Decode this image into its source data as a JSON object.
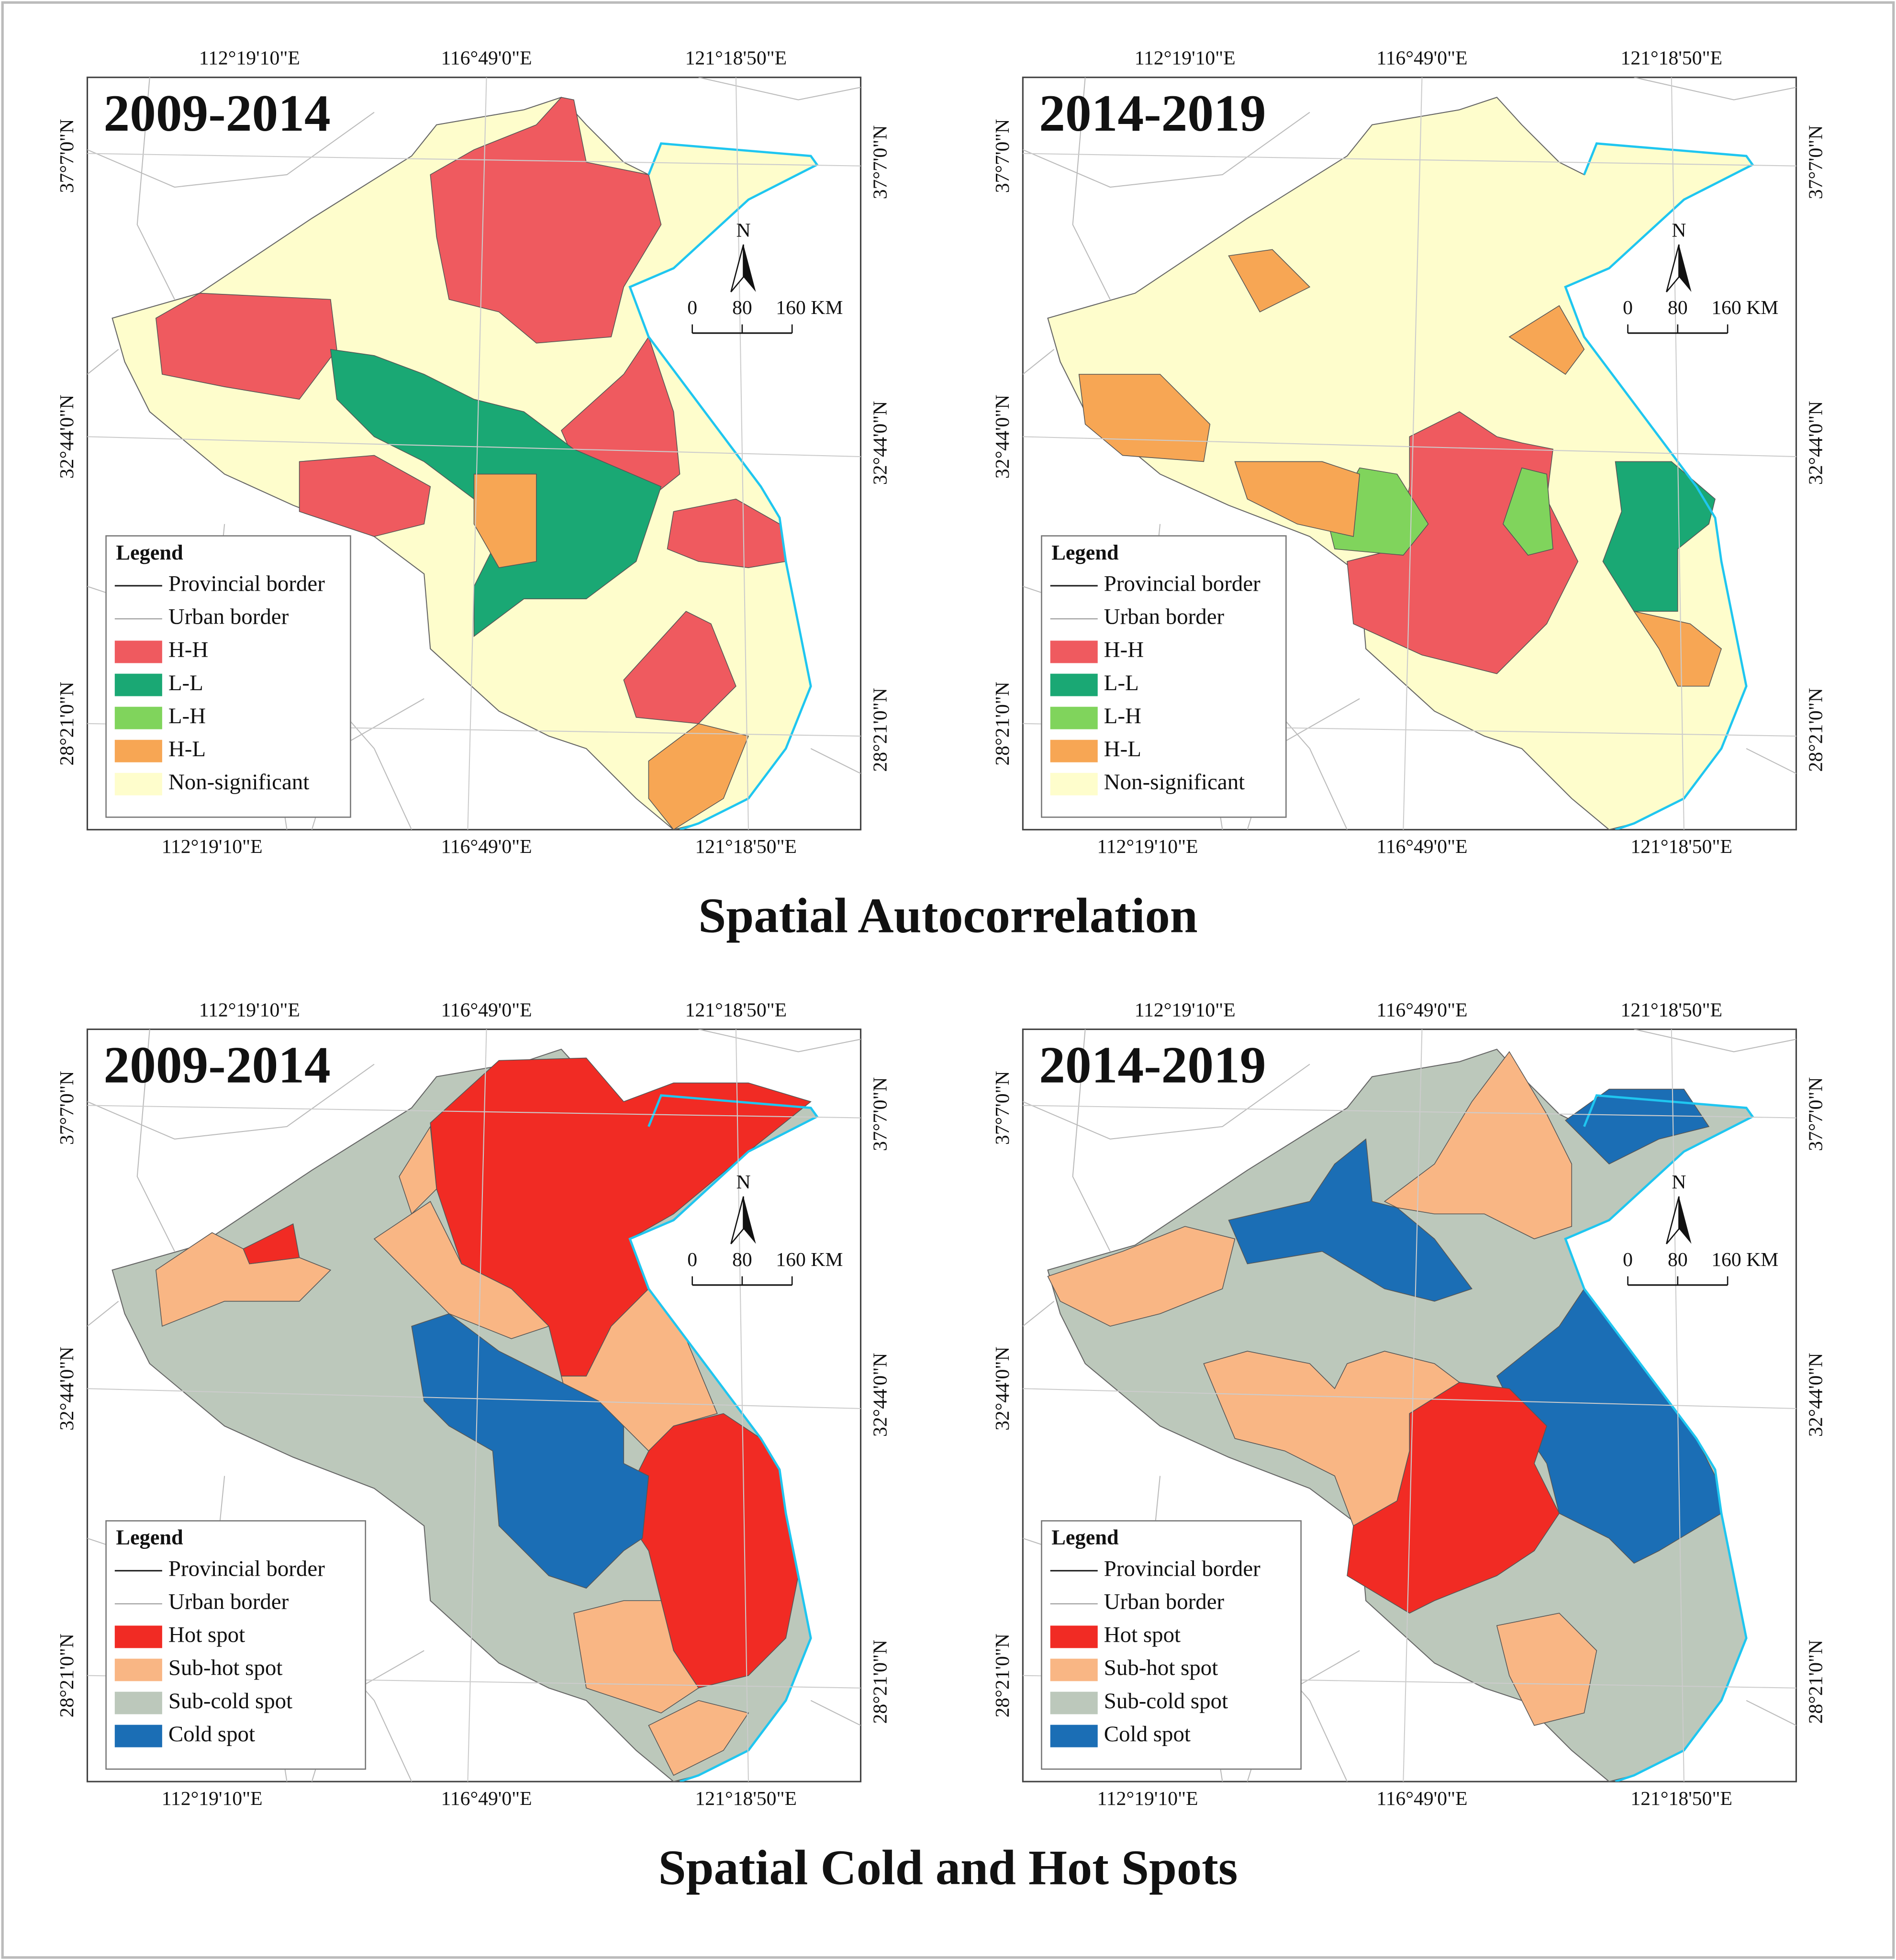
{
  "sections": [
    {
      "title": "Spatial Autocorrelation",
      "legend_items": [
        {
          "label": "Provincial border"
        },
        {
          "label": "Urban border"
        },
        {
          "label": "H-H",
          "color": "#ef5a5f"
        },
        {
          "label": "L-L",
          "color": "#1aa874"
        },
        {
          "label": "L-H",
          "color": "#80d45c"
        },
        {
          "label": "H-L",
          "color": "#f7a654"
        },
        {
          "label": "Non-significant",
          "color": "#fefdcc"
        }
      ],
      "maps": [
        {
          "period": "2009-2014"
        },
        {
          "period": "2014-2019"
        }
      ]
    },
    {
      "title": "Spatial Cold and Hot Spots",
      "legend_items": [
        {
          "label": "Provincial border"
        },
        {
          "label": "Urban border"
        },
        {
          "label": "Hot spot",
          "color": "#f12b24"
        },
        {
          "label": "Sub-hot spot",
          "color": "#f9b684"
        },
        {
          "label": "Sub-cold spot",
          "color": "#bcc8bb"
        },
        {
          "label": "Cold spot",
          "color": "#1b6eb5"
        }
      ],
      "maps": [
        {
          "period": "2009-2014"
        },
        {
          "period": "2014-2019"
        }
      ]
    }
  ],
  "legend_title": "Legend",
  "longitudes": [
    "112°19'10\"E",
    "116°49'0\"E",
    "121°18'50\"E"
  ],
  "latitudes": [
    "37°7'0\"N",
    "32°44'0\"N",
    "28°21'0\"N"
  ],
  "north": "N",
  "scale_bar": [
    "0",
    "80",
    "160 KM"
  ]
}
